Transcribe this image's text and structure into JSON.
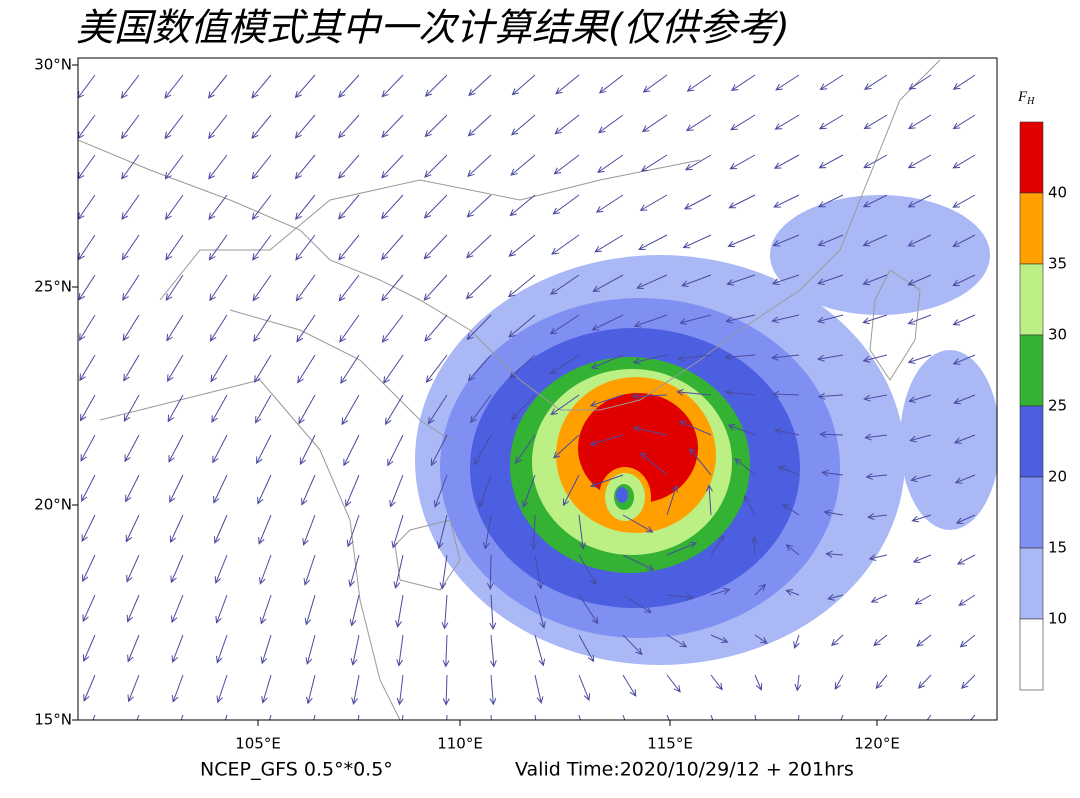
{
  "header": {
    "title": "美国数值模式其中一次计算结果(仅供参考)"
  },
  "map": {
    "lat_labels": [
      "30°N",
      "25°N",
      "20°N",
      "15°N"
    ],
    "lon_labels": [
      "105°E",
      "110°E",
      "115°E",
      "120°E"
    ]
  },
  "colorbar": {
    "symbol": "F",
    "subscript": "H",
    "levels": [
      40,
      35,
      30,
      25,
      20,
      15,
      10
    ],
    "colors": [
      "#e00000",
      "#ffa000",
      "#bdf084",
      "#33b233",
      "#4c5fe0",
      "#7f90f2",
      "#aab8f6",
      "#ffffff"
    ]
  },
  "footer": {
    "source": "NCEP_GFS 0.5°*0.5°",
    "valid_time": "Valid Time:2020/10/29/12 + 201hrs"
  }
}
